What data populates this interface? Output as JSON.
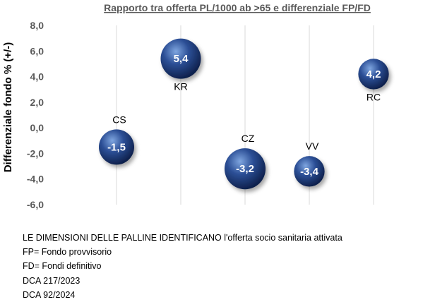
{
  "chart_data": {
    "type": "bubble",
    "title": "Rapporto tra offerta PL/1000 ab >65  e differenziale FP/FD",
    "ylabel": "Differenziale fondo % (+/-)",
    "ylim": [
      -6,
      8
    ],
    "yticks": [
      "8,0",
      "6,0",
      "4,0",
      "2,0",
      "0,0",
      "-2,0",
      "-4,0",
      "-6,0"
    ],
    "grid": "vertical",
    "points": [
      {
        "label": "CS",
        "value": -1.5,
        "value_label": "-1,5",
        "x_index": 1,
        "size": 1.0
      },
      {
        "label": "KR",
        "value": 5.4,
        "value_label": "5,4",
        "x_index": 2,
        "size": 1.3
      },
      {
        "label": "CZ",
        "value": -3.2,
        "value_label": "-3,2",
        "x_index": 3,
        "size": 1.35
      },
      {
        "label": "VV",
        "value": -3.4,
        "value_label": "-3,4",
        "x_index": 4,
        "size": 0.75
      },
      {
        "label": "RC",
        "value": 4.2,
        "value_label": "4,2",
        "x_index": 5,
        "size": 0.75
      }
    ]
  },
  "colors": {
    "bubble_light": "#7fa6e0",
    "bubble_mid": "#2c4f96",
    "bubble_dark": "#0d1f4a",
    "grid": "#d9d9d9"
  },
  "notes": [
    "LE DIMENSIONI DELLE PALLINE IDENTIFICANO  l'offerta socio sanitaria attivata",
    "FP= Fondo provvisorio",
    "FD= Fondi definitivo",
    "DCA 217/2023",
    "DCA 92/2024"
  ]
}
